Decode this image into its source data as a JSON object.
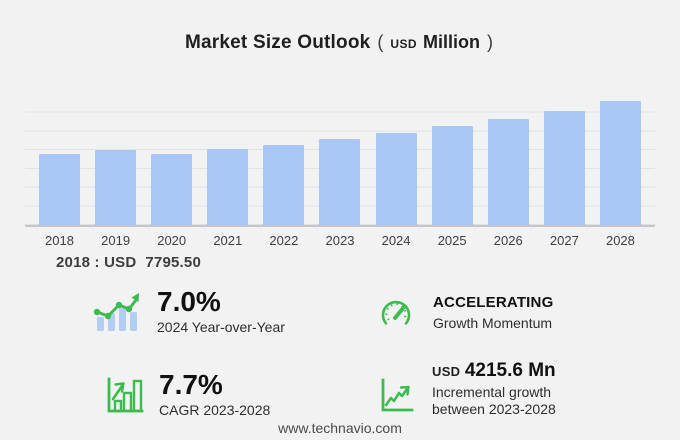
{
  "title": {
    "main": "Market Size Outlook",
    "paren_open": "(",
    "currency": "USD",
    "unit": "Million",
    "paren_close": ")"
  },
  "chart_data": {
    "type": "bar",
    "title": "Market Size Outlook (USD Million)",
    "categories": [
      "2018",
      "2019",
      "2020",
      "2021",
      "2022",
      "2023",
      "2024",
      "2025",
      "2026",
      "2027",
      "2028"
    ],
    "values": [
      7795.5,
      8240,
      7775,
      8280,
      8800,
      9389.9,
      10047,
      10830,
      11640,
      12520,
      13605.5
    ],
    "xlabel": "",
    "ylabel": "USD Million",
    "ylim": [
      0,
      14000
    ],
    "grid": true,
    "legend": false,
    "bar_color": "#a9c7f5"
  },
  "base_year_note": {
    "label": "2018 : USD",
    "value": "7795.50"
  },
  "stats": [
    {
      "id": "yoy",
      "icon": "bar-trend-icon",
      "value": "7.0%",
      "label": "2024 Year-over-Year"
    },
    {
      "id": "momentum",
      "icon": "gauge-icon",
      "value": "ACCELERATING",
      "label": "Growth Momentum"
    },
    {
      "id": "cagr",
      "icon": "bar-growth-icon",
      "value": "7.7%",
      "label": "CAGR 2023-2028"
    },
    {
      "id": "incremental",
      "icon": "line-growth-icon",
      "value_prefix": "USD",
      "value": "4215.6 Mn",
      "label_line1": "Incremental growth",
      "label_line2": "between 2023-2028"
    }
  ],
  "footer": {
    "url": "www.technavio.com"
  },
  "colors": {
    "bar": "#a9c7f5",
    "green": "#3dbb4e",
    "background": "#f2f2f3",
    "gridline": "#e2e2e4",
    "axis": "#c5c5c8"
  }
}
